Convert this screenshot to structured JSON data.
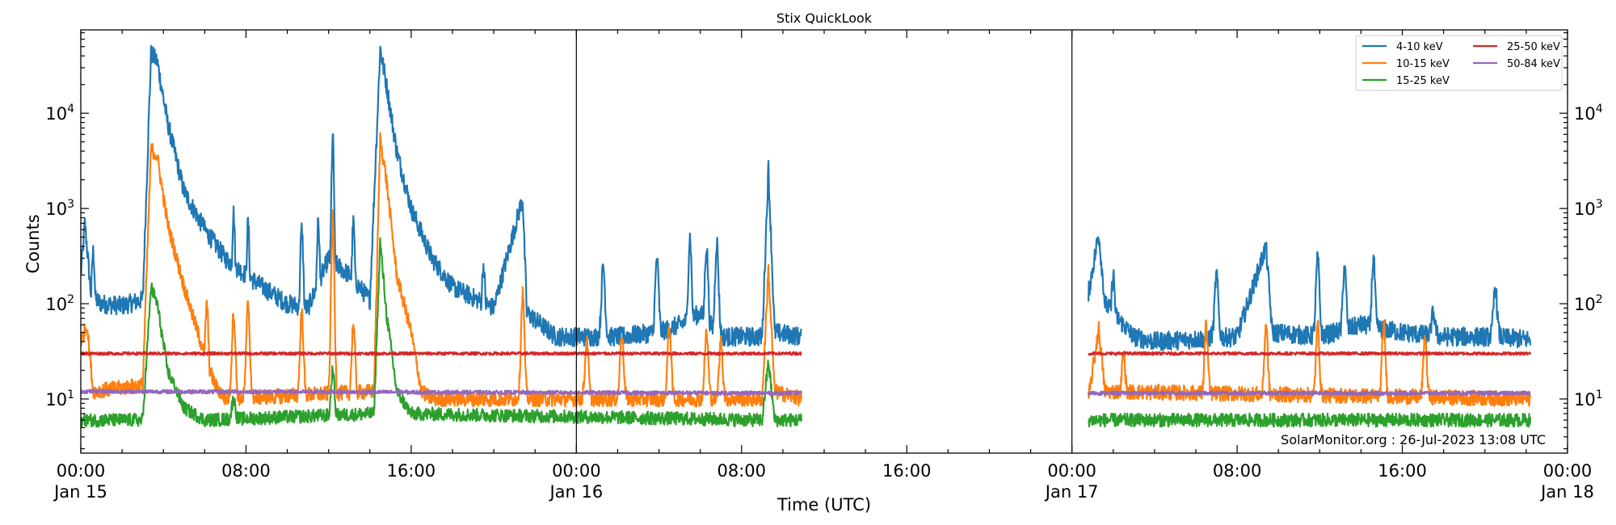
{
  "chart_data": {
    "type": "line",
    "title": "Stix QuickLook",
    "xlabel": "Time (UTC)",
    "ylabel": "Counts",
    "yscale": "log",
    "x_units": "hours since Jan 15 00:00 UTC",
    "xlim": [
      0,
      72
    ],
    "ylim": [
      2.7,
      75000
    ],
    "grid": false,
    "legend_position": "top-right",
    "credit": "SolarMonitor.org : 26-Jul-2023 13:08 UTC",
    "x_ticks": [
      {
        "x": 0,
        "line1": "00:00",
        "line2": "Jan 15"
      },
      {
        "x": 8,
        "line1": "08:00",
        "line2": ""
      },
      {
        "x": 16,
        "line1": "16:00",
        "line2": ""
      },
      {
        "x": 24,
        "line1": "00:00",
        "line2": "Jan 16"
      },
      {
        "x": 32,
        "line1": "08:00",
        "line2": ""
      },
      {
        "x": 40,
        "line1": "16:00",
        "line2": ""
      },
      {
        "x": 48,
        "line1": "00:00",
        "line2": "Jan 17"
      },
      {
        "x": 56,
        "line1": "08:00",
        "line2": ""
      },
      {
        "x": 64,
        "line1": "16:00",
        "line2": ""
      },
      {
        "x": 72,
        "line1": "00:00",
        "line2": "Jan 18"
      }
    ],
    "y_ticks": [
      {
        "value": 10,
        "base": "10",
        "exp": "1"
      },
      {
        "value": 100,
        "base": "10",
        "exp": "2"
      },
      {
        "value": 1000,
        "base": "10",
        "exp": "3"
      },
      {
        "value": 10000,
        "base": "10",
        "exp": "4"
      }
    ],
    "day_separators": [
      24,
      48
    ],
    "data_segments": [
      [
        0,
        34.9
      ],
      [
        48.8,
        70.2
      ]
    ],
    "series": [
      {
        "name": "4-10 keV",
        "color": "#1f77b4",
        "baseline": 45,
        "points": [
          [
            0,
            200
          ],
          [
            0.2,
            700
          ],
          [
            0.5,
            120
          ],
          [
            1,
            100
          ],
          [
            2,
            95
          ],
          [
            3.0,
            110
          ],
          [
            3.4,
            42000
          ],
          [
            3.7,
            35000
          ],
          [
            4.2,
            8000
          ],
          [
            5,
            1500
          ],
          [
            6,
            600
          ],
          [
            7,
            300
          ],
          [
            8,
            200
          ],
          [
            9,
            140
          ],
          [
            10,
            100
          ],
          [
            11,
            90
          ],
          [
            12,
            300
          ],
          [
            13,
            200
          ],
          [
            14,
            110
          ],
          [
            14.5,
            48000
          ],
          [
            14.8,
            20000
          ],
          [
            15.3,
            4000
          ],
          [
            16,
            1000
          ],
          [
            17,
            300
          ],
          [
            18,
            150
          ],
          [
            20,
            90
          ],
          [
            21.4,
            1300
          ],
          [
            21.6,
            80
          ],
          [
            23,
            45
          ],
          [
            24,
            45
          ],
          [
            26,
            45
          ],
          [
            28,
            50
          ],
          [
            29,
            60
          ],
          [
            30,
            80
          ],
          [
            31,
            45
          ],
          [
            33,
            45
          ],
          [
            33.3,
            2700
          ],
          [
            33.6,
            50
          ],
          [
            34.9,
            45
          ],
          [
            48.8,
            130
          ],
          [
            49.3,
            550
          ],
          [
            49.6,
            100
          ],
          [
            51,
            45
          ],
          [
            52,
            40
          ],
          [
            56,
            45
          ],
          [
            57.4,
            400
          ],
          [
            57.7,
            50
          ],
          [
            60,
            45
          ],
          [
            62,
            60
          ],
          [
            64,
            50
          ],
          [
            66,
            45
          ],
          [
            68,
            45
          ],
          [
            70.2,
            42
          ]
        ],
        "peaks": [
          [
            0.6,
            350
          ],
          [
            5.9,
            800
          ],
          [
            7.4,
            900
          ],
          [
            8.1,
            700
          ],
          [
            10.7,
            600
          ],
          [
            11.5,
            700
          ],
          [
            12.2,
            5500
          ],
          [
            13.2,
            700
          ],
          [
            19.5,
            250
          ],
          [
            25.3,
            250
          ],
          [
            27.9,
            300
          ],
          [
            29.5,
            500
          ],
          [
            30.3,
            400
          ],
          [
            30.8,
            450
          ],
          [
            50,
            200
          ],
          [
            55,
            200
          ],
          [
            59.9,
            300
          ],
          [
            61.2,
            250
          ],
          [
            62.6,
            300
          ],
          [
            65.5,
            80
          ],
          [
            68.5,
            150
          ]
        ]
      },
      {
        "name": "10-15 keV",
        "color": "#ff7f0e",
        "baseline": 10,
        "points": [
          [
            0,
            40
          ],
          [
            0.3,
            60
          ],
          [
            0.6,
            12
          ],
          [
            3.0,
            14
          ],
          [
            3.4,
            4300
          ],
          [
            3.7,
            3500
          ],
          [
            4.2,
            700
          ],
          [
            5,
            150
          ],
          [
            5.8,
            40
          ],
          [
            6.5,
            14
          ],
          [
            7,
            10
          ],
          [
            14.2,
            12
          ],
          [
            14.5,
            5500
          ],
          [
            14.8,
            2000
          ],
          [
            15.3,
            200
          ],
          [
            16,
            50
          ],
          [
            16.5,
            12
          ],
          [
            17,
            10
          ],
          [
            33.0,
            10
          ],
          [
            33.3,
            230
          ],
          [
            33.6,
            12
          ],
          [
            34.9,
            10
          ],
          [
            48.8,
            10
          ],
          [
            49.3,
            55
          ],
          [
            49.6,
            12
          ],
          [
            70.2,
            10
          ]
        ],
        "peaks": [
          [
            6.1,
            100
          ],
          [
            7.4,
            80
          ],
          [
            8.1,
            100
          ],
          [
            10.7,
            80
          ],
          [
            12.2,
            800
          ],
          [
            13.2,
            60
          ],
          [
            21.4,
            130
          ],
          [
            24.5,
            40
          ],
          [
            26.2,
            50
          ],
          [
            28.5,
            60
          ],
          [
            30.3,
            50
          ],
          [
            31.0,
            40
          ],
          [
            50.5,
            30
          ],
          [
            54.5,
            60
          ],
          [
            57.4,
            60
          ],
          [
            59.9,
            60
          ],
          [
            63.1,
            60
          ],
          [
            65.1,
            45
          ]
        ]
      },
      {
        "name": "15-25 keV",
        "color": "#2ca02c",
        "baseline": 6,
        "points": [
          [
            0,
            6
          ],
          [
            3.0,
            6
          ],
          [
            3.4,
            150
          ],
          [
            3.7,
            100
          ],
          [
            4.2,
            20
          ],
          [
            5,
            8
          ],
          [
            6,
            6
          ],
          [
            14.2,
            7
          ],
          [
            14.5,
            450
          ],
          [
            14.8,
            80
          ],
          [
            15.3,
            12
          ],
          [
            16,
            7
          ],
          [
            33.0,
            6
          ],
          [
            33.3,
            25
          ],
          [
            33.6,
            6
          ],
          [
            34.9,
            6
          ],
          [
            48.8,
            6
          ],
          [
            70.2,
            6
          ]
        ],
        "peaks": [
          [
            12.2,
            20
          ],
          [
            7.4,
            10
          ]
        ]
      },
      {
        "name": "25-50 keV",
        "color": "#d62728",
        "baseline": 30,
        "points": [
          [
            0,
            30
          ],
          [
            34.9,
            30
          ],
          [
            48.8,
            30
          ],
          [
            70.2,
            30
          ]
        ],
        "peaks": []
      },
      {
        "name": "50-84 keV",
        "color": "#9467bd",
        "baseline": 11.5,
        "points": [
          [
            0,
            12
          ],
          [
            34.9,
            11.5
          ],
          [
            48.8,
            11.5
          ],
          [
            70.2,
            11.5
          ]
        ],
        "peaks": []
      }
    ]
  }
}
